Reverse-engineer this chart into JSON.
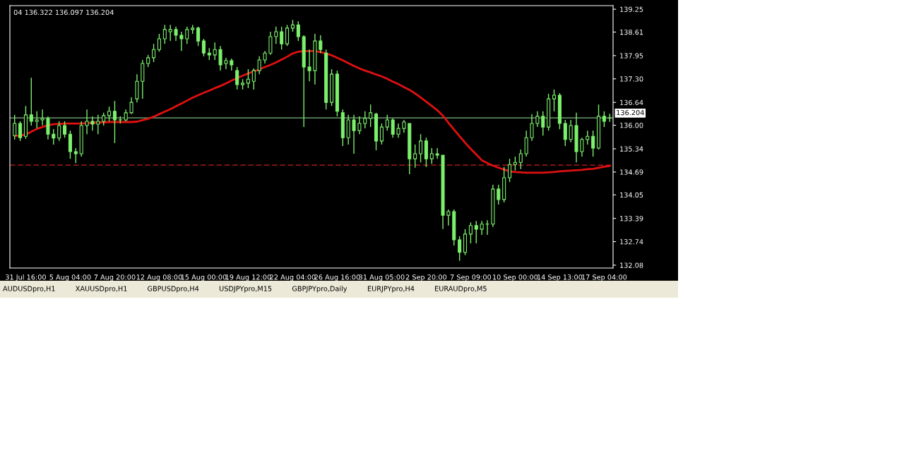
{
  "chart_data": {
    "type": "candlestick",
    "subtitle": "04 136.322 136.097 136.204",
    "categories": [
      null,
      null,
      "31 Jul 16:00",
      null,
      null,
      null,
      null,
      null,
      null,
      null,
      "5 Aug 04:00",
      null,
      null,
      null,
      null,
      null,
      null,
      null,
      "7 Aug 20:00",
      null,
      null,
      null,
      null,
      null,
      null,
      null,
      "12 Aug 08:00",
      null,
      null,
      null,
      null,
      null,
      null,
      null,
      "15 Aug 00:00",
      null,
      null,
      null,
      null,
      null,
      null,
      null,
      "19 Aug 12:00",
      null,
      null,
      null,
      null,
      null,
      null,
      null,
      "22 Aug 04:00",
      null,
      null,
      null,
      null,
      null,
      null,
      null,
      "26 Aug 16:00",
      null,
      null,
      null,
      null,
      null,
      null,
      null,
      "31 Aug 05:00",
      null,
      null,
      null,
      null,
      null,
      null,
      null,
      "2 Sep 20:00",
      null,
      null,
      null,
      null,
      null,
      null,
      null,
      "7 Sep 09:00",
      null,
      null,
      null,
      null,
      null,
      null,
      null,
      "10 Sep 00:00",
      null,
      null,
      null,
      null,
      null,
      null,
      null,
      "14 Sep 13:00",
      null,
      null,
      null,
      null,
      null,
      null,
      null,
      "17 Sep 04:00",
      null
    ],
    "color": "#7cf06c",
    "ohlc": [
      [
        135.71,
        136.29,
        135.6,
        136.05
      ],
      [
        136.05,
        136.11,
        135.56,
        135.65
      ],
      [
        135.69,
        136.54,
        135.62,
        136.29
      ],
      [
        136.29,
        137.33,
        135.99,
        136.11
      ],
      [
        136.11,
        136.39,
        135.91,
        136.15
      ],
      [
        136.15,
        136.44,
        135.99,
        136.19
      ],
      [
        136.19,
        136.25,
        135.6,
        135.75
      ],
      [
        135.75,
        135.89,
        135.46,
        135.64
      ],
      [
        135.64,
        136.11,
        135.56,
        135.99
      ],
      [
        135.99,
        136.11,
        135.65,
        135.75
      ],
      [
        135.75,
        135.85,
        135.06,
        135.26
      ],
      [
        135.26,
        135.36,
        134.94,
        135.2
      ],
      [
        135.2,
        136.11,
        135.12,
        135.99
      ],
      [
        135.99,
        136.44,
        135.75,
        136.11
      ],
      [
        136.11,
        136.25,
        135.85,
        136.03
      ],
      [
        136.03,
        136.29,
        135.75,
        136.11
      ],
      [
        136.11,
        136.35,
        135.99,
        136.27
      ],
      [
        136.27,
        136.52,
        136.11,
        136.39
      ],
      [
        136.39,
        136.68,
        135.5,
        136.15
      ],
      [
        136.15,
        136.25,
        136.05,
        136.15
      ],
      [
        136.15,
        136.44,
        136.11,
        136.35
      ],
      [
        136.35,
        136.78,
        136.31,
        136.64
      ],
      [
        136.74,
        137.43,
        136.64,
        137.23
      ],
      [
        137.23,
        137.83,
        136.74,
        137.73
      ],
      [
        137.73,
        137.97,
        137.63,
        137.89
      ],
      [
        137.89,
        138.28,
        137.77,
        138.12
      ],
      [
        138.12,
        138.56,
        138.06,
        138.42
      ],
      [
        138.42,
        138.81,
        138.28,
        138.68
      ],
      [
        138.62,
        138.81,
        138.36,
        138.68
      ],
      [
        138.68,
        138.76,
        138.36,
        138.52
      ],
      [
        138.52,
        138.62,
        138.08,
        138.42
      ],
      [
        138.42,
        138.76,
        138.28,
        138.68
      ],
      [
        138.68,
        138.81,
        138.56,
        138.72
      ],
      [
        138.72,
        138.76,
        138.22,
        138.36
      ],
      [
        138.36,
        138.42,
        137.93,
        138.02
      ],
      [
        138.02,
        138.16,
        137.83,
        137.97
      ],
      [
        137.97,
        138.32,
        137.83,
        138.12
      ],
      [
        138.12,
        138.22,
        137.53,
        137.69
      ],
      [
        137.73,
        137.89,
        137.57,
        137.81
      ],
      [
        137.81,
        137.87,
        137.53,
        137.69
      ],
      [
        137.53,
        137.63,
        137.0,
        137.14
      ],
      [
        137.14,
        137.29,
        137.0,
        137.18
      ],
      [
        137.18,
        137.57,
        137.04,
        137.29
      ],
      [
        137.23,
        137.59,
        137.0,
        137.53
      ],
      [
        137.53,
        137.93,
        137.43,
        137.83
      ],
      [
        137.83,
        138.08,
        137.73,
        138.02
      ],
      [
        138.02,
        138.62,
        137.97,
        138.48
      ],
      [
        138.48,
        138.76,
        138.28,
        138.62
      ],
      [
        138.62,
        138.76,
        138.12,
        138.28
      ],
      [
        138.28,
        138.81,
        138.22,
        138.72
      ],
      [
        138.72,
        138.95,
        138.62,
        138.81
      ],
      [
        138.81,
        138.91,
        138.36,
        138.48
      ],
      [
        138.48,
        138.52,
        135.95,
        137.63
      ],
      [
        137.63,
        138.12,
        137.23,
        137.53
      ],
      [
        137.53,
        138.56,
        137.14,
        138.36
      ],
      [
        138.36,
        138.52,
        138.02,
        138.12
      ],
      [
        138.02,
        138.12,
        136.44,
        136.64
      ],
      [
        136.64,
        137.57,
        136.54,
        137.43
      ],
      [
        137.43,
        137.53,
        136.25,
        136.39
      ],
      [
        136.35,
        136.44,
        135.42,
        135.65
      ],
      [
        135.65,
        136.29,
        135.46,
        136.15
      ],
      [
        136.15,
        136.29,
        135.2,
        135.85
      ],
      [
        135.85,
        136.25,
        135.75,
        136.05
      ],
      [
        136.05,
        136.39,
        135.91,
        136.19
      ],
      [
        136.19,
        136.58,
        135.95,
        136.35
      ],
      [
        136.31,
        136.35,
        135.3,
        135.56
      ],
      [
        135.56,
        136.05,
        135.46,
        135.95
      ],
      [
        135.95,
        136.29,
        135.85,
        136.15
      ],
      [
        136.15,
        136.19,
        135.65,
        135.75
      ],
      [
        135.75,
        136.05,
        135.65,
        135.91
      ],
      [
        135.91,
        136.15,
        135.79,
        136.09
      ],
      [
        136.05,
        136.05,
        134.63,
        135.06
      ],
      [
        135.06,
        135.46,
        134.81,
        135.2
      ],
      [
        135.2,
        135.75,
        134.96,
        135.56
      ],
      [
        135.56,
        135.65,
        134.83,
        135.06
      ],
      [
        135.06,
        135.36,
        134.92,
        135.2
      ],
      [
        135.2,
        135.36,
        135.06,
        135.16
      ],
      [
        135.16,
        135.16,
        133.09,
        133.48
      ],
      [
        133.48,
        133.64,
        133.19,
        133.58
      ],
      [
        133.58,
        133.64,
        132.63,
        132.79
      ],
      [
        132.79,
        132.89,
        132.2,
        132.44
      ],
      [
        132.44,
        133.09,
        132.36,
        132.95
      ],
      [
        132.95,
        133.28,
        132.69,
        133.19
      ],
      [
        133.19,
        133.32,
        132.69,
        133.09
      ],
      [
        133.09,
        133.32,
        132.93,
        133.23
      ],
      [
        133.23,
        133.34,
        132.93,
        133.23
      ],
      [
        133.23,
        134.33,
        133.15,
        134.21
      ],
      [
        134.21,
        134.33,
        133.78,
        133.92
      ],
      [
        133.92,
        134.83,
        133.84,
        134.53
      ],
      [
        134.53,
        135.06,
        134.41,
        134.9
      ],
      [
        134.9,
        135.12,
        134.73,
        134.96
      ],
      [
        134.96,
        135.32,
        134.77,
        135.2
      ],
      [
        135.2,
        135.85,
        135.12,
        135.65
      ],
      [
        135.65,
        136.31,
        135.56,
        136.05
      ],
      [
        136.05,
        136.39,
        135.95,
        136.25
      ],
      [
        136.25,
        136.39,
        135.71,
        135.95
      ],
      [
        135.95,
        136.88,
        135.85,
        136.74
      ],
      [
        136.74,
        137.0,
        136.39,
        136.84
      ],
      [
        136.84,
        136.9,
        135.89,
        136.05
      ],
      [
        136.05,
        136.15,
        135.42,
        135.6
      ],
      [
        135.6,
        136.15,
        135.52,
        135.99
      ],
      [
        135.99,
        136.35,
        134.96,
        135.26
      ],
      [
        135.26,
        135.65,
        135.12,
        135.6
      ],
      [
        135.6,
        135.85,
        135.46,
        135.69
      ],
      [
        135.69,
        135.85,
        135.12,
        135.36
      ],
      [
        135.36,
        136.58,
        135.32,
        136.25
      ],
      [
        136.25,
        136.39,
        135.95,
        136.11
      ],
      [
        136.204,
        136.322,
        136.097,
        136.204
      ]
    ],
    "series": [
      {
        "type": "line",
        "color": "#e01010",
        "values": [
          135.7,
          135.71,
          135.74,
          135.82,
          135.9,
          135.95,
          136.0,
          136.03,
          136.04,
          136.05,
          136.05,
          136.05,
          136.05,
          136.06,
          136.07,
          136.08,
          136.08,
          136.09,
          136.09,
          136.09,
          136.09,
          136.09,
          136.1,
          136.14,
          136.18,
          136.24,
          136.31,
          136.38,
          136.45,
          136.53,
          136.61,
          136.69,
          136.77,
          136.84,
          136.91,
          136.97,
          137.04,
          137.1,
          137.17,
          137.25,
          137.32,
          137.39,
          137.45,
          137.51,
          137.56,
          137.63,
          137.69,
          137.76,
          137.84,
          137.92,
          138.01,
          138.06,
          138.08,
          138.08,
          138.08,
          138.05,
          138.01,
          137.96,
          137.89,
          137.82,
          137.74,
          137.66,
          137.59,
          137.53,
          137.48,
          137.42,
          137.37,
          137.3,
          137.22,
          137.15,
          137.07,
          136.99,
          136.89,
          136.78,
          136.66,
          136.54,
          136.42,
          136.27,
          136.07,
          135.88,
          135.69,
          135.51,
          135.34,
          135.18,
          135.02,
          134.94,
          134.87,
          134.81,
          134.76,
          134.71,
          134.69,
          134.68,
          134.67,
          134.67,
          134.67,
          134.67,
          134.68,
          134.69,
          134.71,
          134.72,
          134.73,
          134.74,
          134.75,
          134.77,
          134.78,
          134.81,
          134.84,
          134.86
        ]
      }
    ],
    "ylim": [
      132.0,
      139.35
    ],
    "yticks": [
      132.08,
      132.74,
      133.39,
      134.05,
      134.69,
      135.34,
      {
        "value": 136.0,
        "label": "136.00"
      },
      136.64,
      {
        "value": 137.3,
        "label": "137.30"
      },
      137.95,
      138.61,
      139.25
    ],
    "ref_lines": [
      {
        "axis": "y",
        "value": 136.204,
        "label": "136.204",
        "color": "#7fb87f",
        "line_style": "solid"
      },
      {
        "axis": "y",
        "value": 134.88,
        "color": "#c82020",
        "line_style": "dashed"
      }
    ],
    "annotations": [
      "AUDUSDpro,H1",
      "XAUUSDpro,H1",
      "GBPUSDpro,H4",
      "USDJPYpro,M15",
      "GBPJPYpro,Daily",
      "EURJPYpro,H4",
      "EURAUDpro,M5"
    ],
    "grid": false,
    "legend": false
  }
}
